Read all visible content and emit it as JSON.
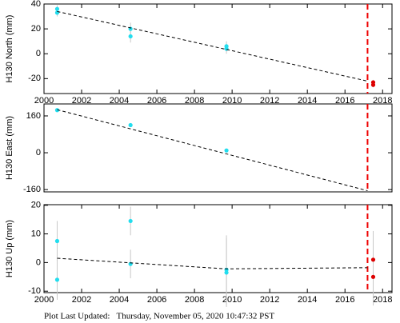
{
  "chart_data": [
    {
      "type": "scatter",
      "ylabel": "H130 North (mm)",
      "xlim": [
        2000,
        2018.5
      ],
      "ylim": [
        -32,
        40
      ],
      "xticks": [
        2000,
        2002,
        2004,
        2006,
        2008,
        2010,
        2012,
        2014,
        2016,
        2018
      ],
      "yticks": [
        -20,
        0,
        20,
        40
      ],
      "series": [
        {
          "style": "points",
          "color": "#22ddee",
          "x": [
            2000.7,
            2000.7,
            2004.6,
            2004.6,
            2009.7,
            2009.7
          ],
          "values": [
            36,
            33,
            20,
            14,
            6,
            4
          ],
          "errors": [
            3,
            3,
            5,
            5,
            4,
            4
          ]
        },
        {
          "style": "points",
          "color": "#dd0000",
          "x": [
            2017.5,
            2017.5
          ],
          "values": [
            -23,
            -25
          ],
          "errors": [
            2,
            2
          ]
        },
        {
          "style": "dashed-line",
          "color": "#000000",
          "x": [
            2000.7,
            2017.2
          ],
          "values": [
            34,
            -22
          ]
        }
      ],
      "vline": {
        "x": 2017.2,
        "color": "#ee0000"
      }
    },
    {
      "type": "scatter",
      "ylabel": "H130 East (mm)",
      "xlim": [
        2000,
        2018.5
      ],
      "ylim": [
        -170,
        212
      ],
      "yticks": [
        -160,
        0,
        160
      ],
      "series": [
        {
          "style": "points",
          "color": "#22ddee",
          "x": [
            2000.7,
            2004.6,
            2009.7
          ],
          "values": [
            185,
            120,
            10
          ],
          "errors": [
            3,
            3,
            3
          ]
        },
        {
          "style": "dashed-line",
          "color": "#000000",
          "x": [
            2000.7,
            2017.2
          ],
          "values": [
            187,
            -165
          ]
        }
      ],
      "vline": {
        "x": 2017.2,
        "color": "#ee0000"
      }
    },
    {
      "type": "scatter",
      "ylabel": "H130 Up (mm)",
      "xlim": [
        2000,
        2018.5
      ],
      "ylim": [
        -10.5,
        20.2
      ],
      "xticks": [
        2000,
        2002,
        2004,
        2006,
        2008,
        2010,
        2012,
        2014,
        2016,
        2018
      ],
      "yticks": [
        -10,
        0,
        10,
        20
      ],
      "series": [
        {
          "style": "points",
          "color": "#22ddee",
          "x": [
            2000.7,
            2000.7,
            2004.6,
            2004.6,
            2009.7,
            2009.7
          ],
          "values": [
            7.5,
            -6,
            14.5,
            -0.5,
            -2.5,
            -3.5
          ],
          "errors": [
            7,
            7,
            5,
            5,
            12,
            12
          ]
        },
        {
          "style": "points",
          "color": "#dd0000",
          "x": [
            2017.5,
            2017.5
          ],
          "values": [
            1,
            -5
          ],
          "errors": [
            10,
            10
          ]
        },
        {
          "style": "dashed-line",
          "color": "#000000",
          "x": [
            2000.7,
            2009.7,
            2017.2
          ],
          "values": [
            1.5,
            -2.2,
            -1.8
          ]
        }
      ],
      "vline": {
        "x": 2017.2,
        "color": "#ee0000"
      }
    }
  ],
  "footer": "Plot Last Updated:   Thursday, November 05, 2020 10:47:32 PST"
}
